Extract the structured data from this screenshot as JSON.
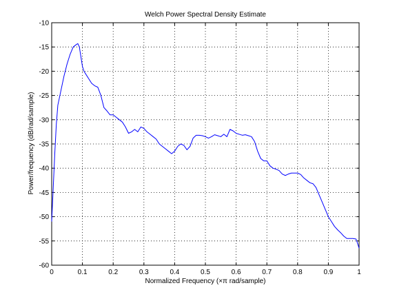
{
  "chart_data": {
    "type": "line",
    "title": "Welch Power Spectral Density Estimate",
    "xlabel": "Normalized Frequency  (×π rad/sample)",
    "ylabel": "Power/frequency (dB/rad/sample)",
    "xlim": [
      0,
      1
    ],
    "ylim": [
      -60,
      -10
    ],
    "xticks": [
      "0",
      "0.1",
      "0.2",
      "0.3",
      "0.4",
      "0.5",
      "0.6",
      "0.7",
      "0.8",
      "0.9",
      "1"
    ],
    "yticks": [
      "-10",
      "-15",
      "-20",
      "-25",
      "-30",
      "-35",
      "-40",
      "-45",
      "-50",
      "-55",
      "-60"
    ],
    "grid": true,
    "line_color": "#0000ff",
    "series": [
      {
        "x": [
          0,
          0.005,
          0.01,
          0.015,
          0.02,
          0.03,
          0.04,
          0.05,
          0.06,
          0.07,
          0.08,
          0.085,
          0.09,
          0.095,
          0.1,
          0.105,
          0.11,
          0.12,
          0.13,
          0.14,
          0.15,
          0.16,
          0.17,
          0.18,
          0.19,
          0.2,
          0.21,
          0.22,
          0.23,
          0.24,
          0.25,
          0.26,
          0.27,
          0.28,
          0.29,
          0.3,
          0.31,
          0.32,
          0.33,
          0.34,
          0.35,
          0.36,
          0.37,
          0.38,
          0.39,
          0.4,
          0.41,
          0.42,
          0.43,
          0.44,
          0.45,
          0.46,
          0.47,
          0.48,
          0.49,
          0.5,
          0.51,
          0.52,
          0.53,
          0.54,
          0.55,
          0.56,
          0.57,
          0.58,
          0.59,
          0.6,
          0.61,
          0.62,
          0.63,
          0.64,
          0.65,
          0.66,
          0.67,
          0.68,
          0.69,
          0.7,
          0.71,
          0.72,
          0.73,
          0.74,
          0.75,
          0.76,
          0.77,
          0.78,
          0.79,
          0.8,
          0.81,
          0.82,
          0.83,
          0.84,
          0.85,
          0.86,
          0.87,
          0.88,
          0.89,
          0.9,
          0.91,
          0.92,
          0.93,
          0.94,
          0.95,
          0.96,
          0.97,
          0.98,
          0.99,
          0.995,
          1.0
        ],
        "y": [
          -51,
          -44,
          -37,
          -31,
          -27,
          -24,
          -21,
          -18.5,
          -16.5,
          -15,
          -14.5,
          -14.3,
          -15,
          -17,
          -19,
          -20,
          -20.5,
          -21.5,
          -22.5,
          -23,
          -23.3,
          -25,
          -27.5,
          -28.2,
          -29,
          -29,
          -29.5,
          -30,
          -30.5,
          -31.5,
          -32.8,
          -32.5,
          -32,
          -32.5,
          -31.5,
          -31.8,
          -32.5,
          -33,
          -33.5,
          -34,
          -35,
          -35.5,
          -36,
          -36.5,
          -37,
          -36.5,
          -35.5,
          -35,
          -35.3,
          -36.2,
          -35.5,
          -33.8,
          -33.2,
          -33.2,
          -33.3,
          -33.5,
          -33.8,
          -33.5,
          -33.1,
          -33.3,
          -33.5,
          -33,
          -33.5,
          -32,
          -32.3,
          -32.8,
          -33,
          -33.2,
          -33.1,
          -33.3,
          -33.5,
          -34.5,
          -36.5,
          -38,
          -38.5,
          -38.5,
          -39.5,
          -40,
          -40.2,
          -40.5,
          -41.2,
          -41.5,
          -41.2,
          -41,
          -41,
          -41,
          -41.3,
          -42,
          -42.5,
          -43,
          -43.2,
          -44,
          -45.5,
          -47,
          -48.5,
          -50,
          -51,
          -52,
          -52.7,
          -53.3,
          -54,
          -54.5,
          -54.5,
          -54.5,
          -54.6,
          -55.5,
          -56.5
        ]
      }
    ]
  }
}
